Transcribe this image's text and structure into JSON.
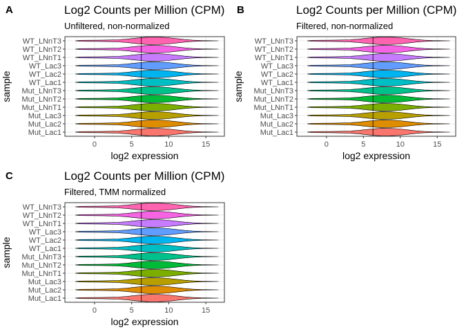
{
  "chart_data": [
    {
      "type": "violin",
      "panel_tag": "A",
      "title": "Log2 Counts per Million (CPM)",
      "subtitle": "Unfiltered, non-normalized",
      "xlabel": "log2 expression",
      "ylabel": "sample",
      "xlim": [
        -4,
        17.5
      ],
      "x_ticks": [
        0,
        5,
        10,
        15
      ],
      "categories": [
        "Mut_Lac1",
        "Mut_Lac2",
        "Mut_Lac3",
        "Mut_LNnT1",
        "Mut_LNnT2",
        "Mut_LNnT3",
        "WT_Lac1",
        "WT_Lac2",
        "WT_Lac3",
        "WT_LNnT1",
        "WT_LNnT2",
        "WT_LNnT3"
      ],
      "colors": [
        "#F8766D",
        "#DE8C00",
        "#B79F00",
        "#7CAE00",
        "#00BA38",
        "#00C08B",
        "#00BFC4",
        "#00B4F0",
        "#619CFF",
        "#C77CFF",
        "#F564E3",
        "#FF64B0"
      ],
      "series": [
        {
          "min": -2.6,
          "max": 16.7,
          "median": 6.3
        },
        {
          "min": -2.6,
          "max": 16.7,
          "median": 6.3
        },
        {
          "min": -2.6,
          "max": 16.7,
          "median": 6.3
        },
        {
          "min": -2.6,
          "max": 16.7,
          "median": 6.3
        },
        {
          "min": -2.6,
          "max": 16.7,
          "median": 6.3
        },
        {
          "min": -2.6,
          "max": 16.7,
          "median": 6.3
        },
        {
          "min": -2.6,
          "max": 16.7,
          "median": 6.3
        },
        {
          "min": -2.6,
          "max": 16.7,
          "median": 6.3
        },
        {
          "min": -2.6,
          "max": 16.7,
          "median": 6.3
        },
        {
          "min": -2.6,
          "max": 16.7,
          "median": 6.3
        },
        {
          "min": -2.6,
          "max": 16.7,
          "median": 6.3
        },
        {
          "min": -2.6,
          "max": 16.7,
          "median": 6.3
        }
      ],
      "grid": true,
      "legend": "none"
    },
    {
      "type": "violin",
      "panel_tag": "B",
      "title": "Log2 Counts per Million (CPM)",
      "subtitle": "Filtered, non-normalized",
      "xlabel": "log2 expression",
      "ylabel": "sample",
      "xlim": [
        -4,
        17.5
      ],
      "x_ticks": [
        0,
        5,
        10,
        15
      ],
      "categories": [
        "Mut_Lac1",
        "Mut_Lac2",
        "Mut_Lac3",
        "Mut_LNnT1",
        "Mut_LNnT2",
        "Mut_LNnT3",
        "WT_Lac1",
        "WT_Lac2",
        "WT_Lac3",
        "WT_LNnT1",
        "WT_LNnT2",
        "WT_LNnT3"
      ],
      "colors": [
        "#F8766D",
        "#DE8C00",
        "#B79F00",
        "#7CAE00",
        "#00BA38",
        "#00C08B",
        "#00BFC4",
        "#00B4F0",
        "#619CFF",
        "#C77CFF",
        "#F564E3",
        "#FF64B0"
      ],
      "series": [
        {
          "min": -2.6,
          "max": 16.7,
          "median": 6.3
        },
        {
          "min": -2.6,
          "max": 16.7,
          "median": 6.3
        },
        {
          "min": -2.6,
          "max": 16.7,
          "median": 6.3
        },
        {
          "min": -2.6,
          "max": 16.7,
          "median": 6.3
        },
        {
          "min": -2.6,
          "max": 16.7,
          "median": 6.3
        },
        {
          "min": -2.6,
          "max": 16.7,
          "median": 6.3
        },
        {
          "min": -2.6,
          "max": 16.7,
          "median": 6.3
        },
        {
          "min": -2.6,
          "max": 16.7,
          "median": 6.3
        },
        {
          "min": -2.6,
          "max": 16.7,
          "median": 6.3
        },
        {
          "min": -2.6,
          "max": 16.7,
          "median": 6.3
        },
        {
          "min": -2.6,
          "max": 16.7,
          "median": 6.3
        },
        {
          "min": -2.6,
          "max": 16.7,
          "median": 6.3
        }
      ],
      "grid": true,
      "legend": "none"
    },
    {
      "type": "violin",
      "panel_tag": "C",
      "title": "Log2 Counts per Million (CPM)",
      "subtitle": "Filtered, TMM normalized",
      "xlabel": "log2 expression",
      "ylabel": "sample",
      "xlim": [
        -4,
        17.5
      ],
      "x_ticks": [
        0,
        5,
        10,
        15
      ],
      "categories": [
        "Mut_Lac1",
        "Mut_Lac2",
        "Mut_Lac3",
        "Mut_LNnT1",
        "Mut_LNnT2",
        "Mut_LNnT3",
        "WT_Lac1",
        "WT_Lac2",
        "WT_Lac3",
        "WT_LNnT1",
        "WT_LNnT2",
        "WT_LNnT3"
      ],
      "colors": [
        "#F8766D",
        "#DE8C00",
        "#B79F00",
        "#7CAE00",
        "#00BA38",
        "#00C08B",
        "#00BFC4",
        "#00B4F0",
        "#619CFF",
        "#C77CFF",
        "#F564E3",
        "#FF64B0"
      ],
      "series": [
        {
          "min": -2.6,
          "max": 16.7,
          "median": 6.3
        },
        {
          "min": -2.6,
          "max": 16.7,
          "median": 6.3
        },
        {
          "min": -2.6,
          "max": 16.7,
          "median": 6.3
        },
        {
          "min": -2.6,
          "max": 16.7,
          "median": 6.3
        },
        {
          "min": -2.6,
          "max": 16.7,
          "median": 6.3
        },
        {
          "min": -2.6,
          "max": 16.7,
          "median": 6.3
        },
        {
          "min": -2.6,
          "max": 16.7,
          "median": 6.3
        },
        {
          "min": -2.6,
          "max": 16.7,
          "median": 6.3
        },
        {
          "min": -2.6,
          "max": 16.7,
          "median": 6.3
        },
        {
          "min": -2.6,
          "max": 16.7,
          "median": 6.3
        },
        {
          "min": -2.6,
          "max": 16.7,
          "median": 6.3
        },
        {
          "min": -2.6,
          "max": 16.7,
          "median": 6.3
        }
      ],
      "grid": true,
      "legend": "none"
    }
  ]
}
